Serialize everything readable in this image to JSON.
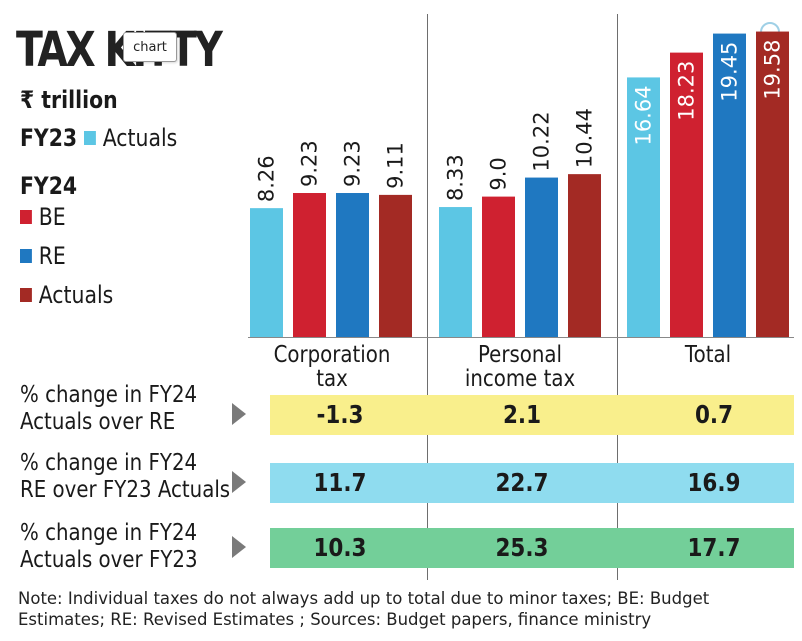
{
  "tooltip": "chart",
  "chart_data": {
    "type": "bar",
    "title": "TAX KITTY",
    "unit": "₹ trillion",
    "categories": [
      "Corporation tax",
      "Personal income tax",
      "Total"
    ],
    "series": [
      {
        "name": "FY23 Actuals",
        "color": "#5cc6e4",
        "values": [
          8.26,
          8.33,
          16.64
        ],
        "labels": [
          "8.26",
          "8.33",
          "16.64"
        ]
      },
      {
        "name": "FY24 BE",
        "color": "#cf2130",
        "values": [
          9.23,
          9.0,
          18.23
        ],
        "labels": [
          "9.23",
          "9.0",
          "18.23"
        ]
      },
      {
        "name": "FY24 RE",
        "color": "#1f78c1",
        "values": [
          9.23,
          10.22,
          19.45
        ],
        "labels": [
          "9.23",
          "10.22",
          "19.45"
        ]
      },
      {
        "name": "FY24 Actuals",
        "color": "#a32a24",
        "values": [
          9.11,
          10.44,
          19.58
        ],
        "labels": [
          "9.11",
          "10.44",
          "19.58"
        ]
      }
    ],
    "legend": {
      "group1": "FY23",
      "group1_items": [
        "Actuals"
      ],
      "group2": "FY24",
      "group2_items": [
        "BE",
        "RE",
        "Actuals"
      ]
    },
    "category_labels": [
      [
        "Corporation",
        "tax"
      ],
      [
        "Personal",
        "income tax"
      ],
      [
        "Total"
      ]
    ]
  },
  "table": {
    "rows": [
      {
        "label": [
          "% change in FY24",
          "Actuals over RE"
        ],
        "color": "#f9ef8c",
        "values": [
          "-1.3",
          "2.1",
          "0.7"
        ]
      },
      {
        "label": [
          "% change in FY24",
          "RE over FY23 Actuals"
        ],
        "color": "#8fdcef",
        "values": [
          "11.7",
          "22.7",
          "16.9"
        ]
      },
      {
        "label": [
          "% change in FY24",
          "Actuals over FY23"
        ],
        "color": "#73cf99",
        "values": [
          "10.3",
          "25.3",
          "17.7"
        ]
      }
    ]
  },
  "note": "Note: Individual taxes do not always add up to total due to minor taxes; BE: Budget Estimates; RE: Revised Estimates ; Sources: Budget papers, finance ministry"
}
